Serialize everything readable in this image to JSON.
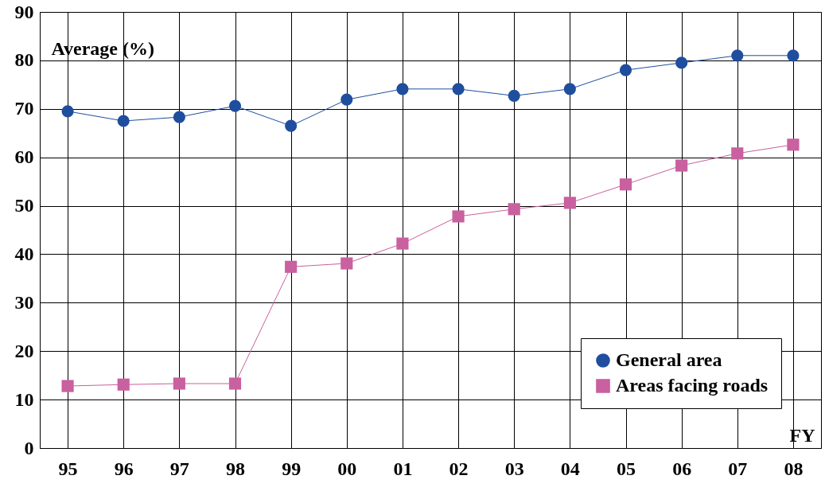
{
  "chart_data": {
    "type": "line",
    "ylabel": "Average (%)",
    "xlabel": "FY",
    "categories": [
      "95",
      "96",
      "97",
      "98",
      "99",
      "00",
      "01",
      "02",
      "03",
      "04",
      "05",
      "06",
      "07",
      "08"
    ],
    "series": [
      {
        "name": "General area",
        "color": "#1f4e9e",
        "marker": "circle",
        "values": [
          69.5,
          67.5,
          68.3,
          70.6,
          66.5,
          71.9,
          74.1,
          74.1,
          72.7,
          74.1,
          78.0,
          79.5,
          81.0,
          81.0
        ]
      },
      {
        "name": "Areas facing roads",
        "color": "#c9609f",
        "marker": "square",
        "values": [
          12.8,
          13.1,
          13.3,
          13.3,
          37.4,
          38.1,
          42.2,
          47.8,
          49.3,
          50.6,
          54.4,
          58.3,
          60.8,
          62.6
        ]
      }
    ],
    "ylim": [
      0,
      90
    ],
    "yticks": [
      0,
      10,
      20,
      30,
      40,
      50,
      60,
      70,
      80,
      90
    ],
    "grid": true,
    "legend": "bottom right"
  }
}
